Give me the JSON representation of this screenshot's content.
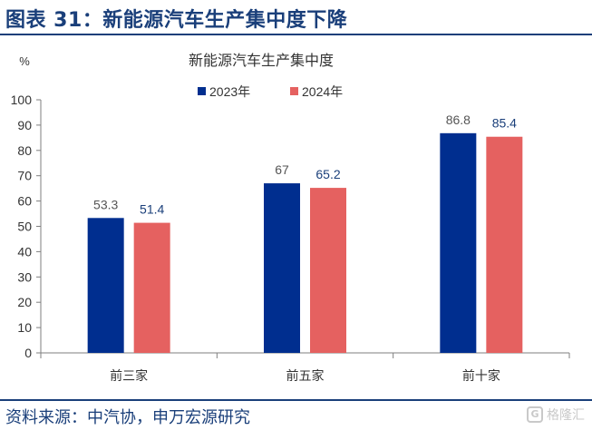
{
  "figure": {
    "title": "图表 31：新能源汽车生产集中度下降",
    "source": "资料来源：中汽协，申万宏源研究",
    "watermark": "格隆汇"
  },
  "colors": {
    "header": "#1a3f7a",
    "series_2023": "#002e8f",
    "series_2024": "#e56160",
    "axis": "#7f7f7f",
    "text": "#333333"
  },
  "chart_data": {
    "type": "bar",
    "title": "新能源汽车生产集中度",
    "unit_label": "%",
    "categories": [
      "前三家",
      "前五家",
      "前十家"
    ],
    "series": [
      {
        "name": "2023年",
        "values": [
          53.3,
          67,
          86.8
        ],
        "value_labels": [
          "53.3",
          "67",
          "86.8"
        ]
      },
      {
        "name": "2024年",
        "values": [
          51.4,
          65.2,
          85.4
        ],
        "value_labels": [
          "51.4",
          "65.2",
          "85.4"
        ]
      }
    ],
    "ylim": [
      0,
      100
    ],
    "yticks": [
      "0",
      "10",
      "20",
      "30",
      "40",
      "50",
      "60",
      "70",
      "80",
      "90",
      "100"
    ],
    "grid": false,
    "legend_position": "top-center"
  }
}
